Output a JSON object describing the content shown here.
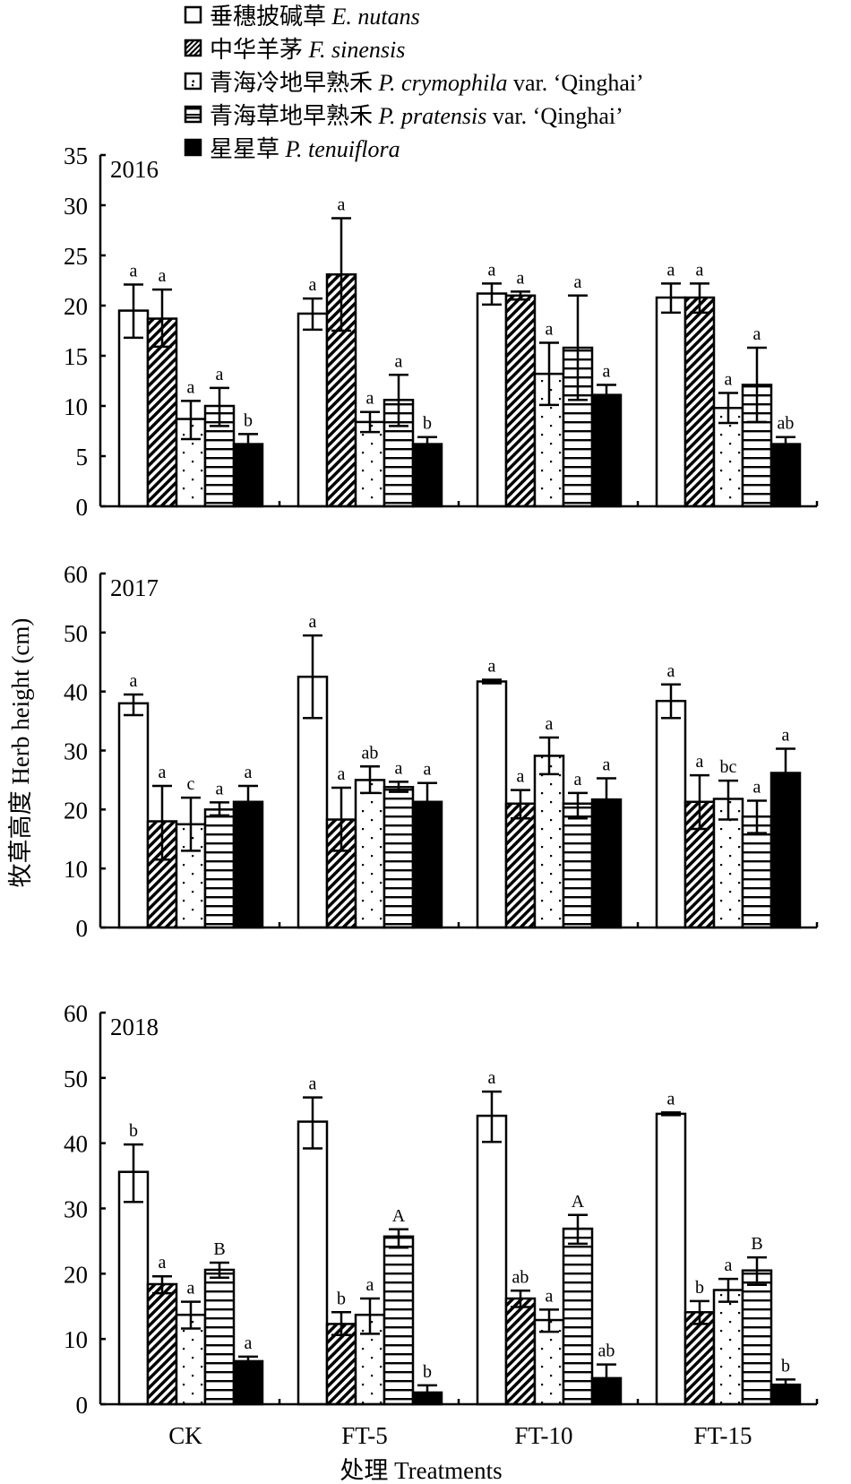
{
  "chart_data": {
    "type": "bar",
    "title": "",
    "xlabel": "处理 Treatments",
    "ylabel": "牧草高度 Herb height (cm)",
    "categories": [
      "CK",
      "FT-5",
      "FT-10",
      "FT-15"
    ],
    "legend": {
      "placement": "top",
      "entries": [
        {
          "cn": "垂穗披碱草",
          "latin": "E. nutans",
          "extra": "",
          "pattern": "white"
        },
        {
          "cn": "中华羊茅",
          "latin": "F. sinensis",
          "extra": "",
          "pattern": "diagonal"
        },
        {
          "cn": "青海冷地早熟禾",
          "latin": "P. crymophila",
          "extra": " var. ‘Qinghai’",
          "pattern": "dots"
        },
        {
          "cn": "青海草地早熟禾",
          "latin": "P. pratensis",
          "extra": " var. ‘Qinghai’",
          "pattern": "horizontal"
        },
        {
          "cn": "星星草",
          "latin": "P. tenuiflora",
          "extra": "",
          "pattern": "black"
        }
      ]
    },
    "panels": [
      {
        "year": "2016",
        "ylim": [
          0,
          35
        ],
        "yticks": [
          0,
          5,
          10,
          15,
          20,
          25,
          30,
          35
        ],
        "series": [
          {
            "name": "E. nutans",
            "values": [
              19.5,
              19.2,
              21.2,
              20.8
            ],
            "err_low": [
              16.8,
              17.6,
              20.1,
              19.3
            ],
            "err_high": [
              22.1,
              20.7,
              22.2,
              22.2
            ],
            "letters": [
              "a",
              "a",
              "a",
              "a"
            ]
          },
          {
            "name": "F. sinensis",
            "values": [
              18.7,
              23.1,
              21.0,
              20.8
            ],
            "err_low": [
              15.9,
              17.5,
              20.6,
              19.3
            ],
            "err_high": [
              21.6,
              28.7,
              21.4,
              22.2
            ],
            "letters": [
              "a",
              "a",
              "a",
              "a"
            ]
          },
          {
            "name": "P. crymophila var. ‘Qinghai’",
            "values": [
              8.7,
              8.4,
              13.2,
              9.8
            ],
            "err_low": [
              6.7,
              7.4,
              10.1,
              8.3
            ],
            "err_high": [
              10.5,
              9.4,
              16.3,
              11.3
            ],
            "letters": [
              "a",
              "a",
              "a",
              "a"
            ]
          },
          {
            "name": "P. pratensis var. ‘Qinghai’",
            "values": [
              10.0,
              10.6,
              15.8,
              12.1
            ],
            "err_low": [
              8.0,
              8.0,
              10.6,
              8.4
            ],
            "err_high": [
              11.8,
              13.1,
              21.0,
              15.8
            ],
            "letters": [
              "a",
              "a",
              "a",
              "a"
            ]
          },
          {
            "name": "P. tenuiflora",
            "values": [
              6.2,
              6.2,
              11.1,
              6.2
            ],
            "err_low": [
              6.2,
              6.2,
              11.1,
              6.2
            ],
            "err_high": [
              7.2,
              6.9,
              12.1,
              6.9
            ],
            "letters": [
              "b",
              "b",
              "a",
              "ab"
            ]
          }
        ]
      },
      {
        "year": "2017",
        "ylim": [
          0,
          60
        ],
        "yticks": [
          0,
          10,
          20,
          30,
          40,
          50,
          60
        ],
        "series": [
          {
            "name": "E. nutans",
            "values": [
              38.0,
              42.5,
              41.7,
              38.4
            ],
            "err_low": [
              36.0,
              35.5,
              41.4,
              35.5
            ],
            "err_high": [
              39.5,
              49.5,
              42.0,
              41.2
            ],
            "letters": [
              "a",
              "a",
              "a",
              "a"
            ]
          },
          {
            "name": "F. sinensis",
            "values": [
              18.0,
              18.3,
              21.0,
              21.3
            ],
            "err_low": [
              11.5,
              13.0,
              18.5,
              16.7
            ],
            "err_high": [
              24.0,
              23.7,
              23.3,
              25.8
            ],
            "letters": [
              "a",
              "a",
              "a",
              "a"
            ]
          },
          {
            "name": "P. crymophila var. ‘Qinghai’",
            "values": [
              17.5,
              25.0,
              29.1,
              21.8
            ],
            "err_low": [
              13.0,
              22.8,
              26.0,
              18.3
            ],
            "err_high": [
              22.0,
              27.3,
              32.2,
              24.9
            ],
            "letters": [
              "c",
              "ab",
              "a",
              "bc"
            ]
          },
          {
            "name": "P. pratensis var. ‘Qinghai’",
            "values": [
              20.0,
              23.8,
              21.0,
              18.8
            ],
            "err_low": [
              19.0,
              23.0,
              18.5,
              16.0
            ],
            "err_high": [
              21.2,
              24.7,
              22.8,
              21.5
            ],
            "letters": [
              "a",
              "a",
              "a",
              "a"
            ]
          },
          {
            "name": "P. tenuiflora",
            "values": [
              21.3,
              21.3,
              21.7,
              26.2
            ],
            "err_low": [
              21.3,
              21.3,
              21.7,
              26.2
            ],
            "err_high": [
              24.0,
              24.5,
              25.3,
              30.3
            ],
            "letters": [
              "a",
              "a",
              "a",
              "a"
            ]
          }
        ]
      },
      {
        "year": "2018",
        "ylim": [
          0,
          60
        ],
        "yticks": [
          0,
          10,
          20,
          30,
          40,
          50,
          60
        ],
        "series": [
          {
            "name": "E. nutans",
            "values": [
              35.6,
              43.3,
              44.2,
              44.5
            ],
            "err_low": [
              31.0,
              39.2,
              40.2,
              44.3
            ],
            "err_high": [
              39.8,
              47.0,
              47.9,
              44.7
            ],
            "letters": [
              "b",
              "a",
              "a",
              "a"
            ]
          },
          {
            "name": "F. sinensis",
            "values": [
              18.4,
              12.3,
              16.2,
              14.1
            ],
            "err_low": [
              17.0,
              10.6,
              14.9,
              12.3
            ],
            "err_high": [
              19.6,
              14.1,
              17.4,
              15.8
            ],
            "letters": [
              "a",
              "b",
              "ab",
              "b"
            ]
          },
          {
            "name": "P. crymophila var. ‘Qinghai’",
            "values": [
              13.7,
              13.7,
              12.9,
              17.5
            ],
            "err_low": [
              11.6,
              10.8,
              11.1,
              15.7
            ],
            "err_high": [
              15.7,
              16.2,
              14.5,
              19.2
            ],
            "letters": [
              "a",
              "a",
              "a",
              "a"
            ]
          },
          {
            "name": "P. pratensis var. ‘Qinghai’",
            "values": [
              20.6,
              25.7,
              26.9,
              20.5
            ],
            "err_low": [
              19.4,
              24.0,
              24.6,
              18.3
            ],
            "err_high": [
              21.7,
              26.8,
              29.0,
              22.5
            ],
            "letters": [
              "B",
              "A",
              "A",
              "B"
            ]
          },
          {
            "name": "P. tenuiflora",
            "values": [
              6.6,
              1.8,
              4.0,
              3.0
            ],
            "err_low": [
              6.6,
              1.8,
              4.0,
              3.0
            ],
            "err_high": [
              7.3,
              2.9,
              6.1,
              3.8
            ],
            "letters": [
              "a",
              "b",
              "ab",
              "b"
            ]
          }
        ]
      }
    ]
  }
}
